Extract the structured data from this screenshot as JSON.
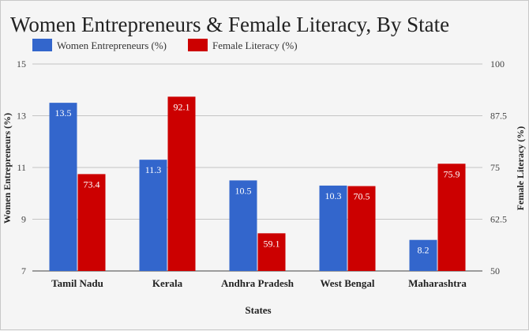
{
  "chart_data": {
    "type": "bar",
    "title": "Women Entrepreneurs & Female Literacy, By State",
    "xlabel": "States",
    "ylabel_left": "Women Entrepreneurs (%)",
    "ylabel_right": "Female Literacy (%)",
    "categories": [
      "Tamil Nadu",
      "Kerala",
      "Andhra Pradesh",
      "West Bengal",
      "Maharashtra"
    ],
    "series": [
      {
        "name": "Women Entrepreneurs (%)",
        "axis": "left",
        "color": "#3366cc",
        "values": [
          13.5,
          11.3,
          10.5,
          10.3,
          8.2
        ],
        "labels": [
          "13.5",
          "11.3",
          "10.5",
          "10.3",
          "8.2"
        ]
      },
      {
        "name": "Female Literacy (%)",
        "axis": "right",
        "color": "#cc0000",
        "values": [
          73.4,
          92.1,
          59.1,
          70.5,
          75.9
        ],
        "labels": [
          "73.4",
          "92.1",
          "59.1",
          "70.5",
          "75.9"
        ]
      }
    ],
    "ylim_left": [
      7,
      15
    ],
    "yticks_left": [
      "7",
      "9",
      "11",
      "13",
      "15"
    ],
    "ylim_right": [
      50,
      100
    ],
    "yticks_right": [
      "50",
      "62.5",
      "75",
      "87.5",
      "100"
    ],
    "grid": true,
    "legend": "top-left"
  }
}
